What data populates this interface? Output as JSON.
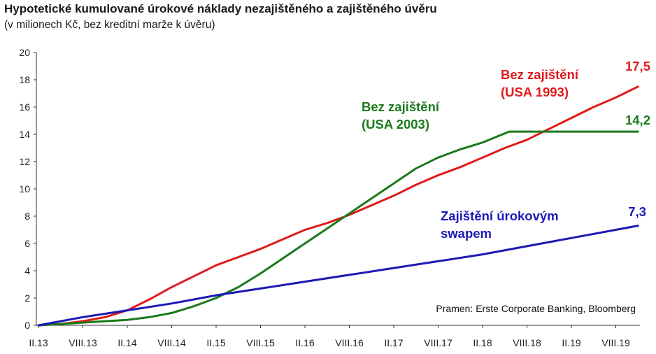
{
  "header": {
    "title": "Hypotetické kumulované úrokové náklady nezajištěného a zajištěného úvěru",
    "subtitle": "(v milionech Kč, bez kreditní marže k úvěru)"
  },
  "source_note": "Pramen: Erste Corporate Banking, Bloomberg",
  "colors": {
    "red": "#e01b1b",
    "green": "#1b7a1b",
    "blue": "#1c1ab4",
    "axis": "#333333"
  },
  "chart_data": {
    "type": "line",
    "title": "Hypotetické kumulované úrokové náklady nezajištěného a zajištěného úvěru",
    "subtitle": "(v milionech Kč, bez kreditní marže k úvěru)",
    "xlim": [
      0,
      13.6
    ],
    "ylim": [
      0,
      20
    ],
    "y_ticks": [
      0,
      2,
      4,
      6,
      8,
      10,
      12,
      14,
      16,
      18,
      20
    ],
    "x_ticks": [
      {
        "value": 0,
        "label": "II.13"
      },
      {
        "value": 1,
        "label": "VIII.13"
      },
      {
        "value": 2,
        "label": "II.14"
      },
      {
        "value": 3,
        "label": "VIII.14"
      },
      {
        "value": 4,
        "label": "II.15"
      },
      {
        "value": 5,
        "label": "VIII.15"
      },
      {
        "value": 6,
        "label": "II.16"
      },
      {
        "value": 7,
        "label": "VIII.16"
      },
      {
        "value": 8,
        "label": "II.17"
      },
      {
        "value": 9,
        "label": "VIII.17"
      },
      {
        "value": 10,
        "label": "II.18"
      },
      {
        "value": 11,
        "label": "VIII.18"
      },
      {
        "value": 12,
        "label": "II.19"
      },
      {
        "value": 13,
        "label": "VIII.19"
      }
    ],
    "grid": false,
    "series": [
      {
        "key": "red",
        "label_lines": [
          "Bez zajištění",
          "(USA 1993)"
        ],
        "end_label": "17,5",
        "x": [
          0,
          0.5,
          1,
          1.5,
          2,
          2.5,
          3,
          3.5,
          4,
          4.5,
          5,
          5.5,
          6,
          6.5,
          7,
          7.5,
          8,
          8.5,
          9,
          9.5,
          10,
          10.5,
          11,
          11.5,
          12,
          12.5,
          13,
          13.5
        ],
        "values": [
          0,
          0.1,
          0.3,
          0.6,
          1.1,
          1.9,
          2.8,
          3.6,
          4.4,
          5.0,
          5.6,
          6.3,
          7.0,
          7.5,
          8.1,
          8.8,
          9.5,
          10.3,
          11.0,
          11.6,
          12.3,
          13.0,
          13.6,
          14.4,
          15.2,
          16.0,
          16.7,
          17.5
        ]
      },
      {
        "key": "green",
        "label_lines": [
          "Bez zajištění",
          "(USA 2003)"
        ],
        "end_label": "14,2",
        "x": [
          0,
          0.5,
          1,
          1.5,
          2,
          2.5,
          3,
          3.5,
          4,
          4.5,
          5,
          5.5,
          6,
          6.5,
          7,
          7.5,
          8,
          8.5,
          9,
          9.5,
          10,
          10.3,
          10.6,
          11,
          11.5,
          12,
          12.5,
          13,
          13.5
        ],
        "values": [
          0,
          0.1,
          0.2,
          0.3,
          0.4,
          0.6,
          0.9,
          1.4,
          2.0,
          2.8,
          3.8,
          4.9,
          6.0,
          7.1,
          8.2,
          9.3,
          10.4,
          11.5,
          12.3,
          12.9,
          13.4,
          13.8,
          14.2,
          14.2,
          14.2,
          14.2,
          14.2,
          14.2,
          14.2
        ]
      },
      {
        "key": "blue",
        "label_lines": [
          "Zajištění úrokovým",
          "swapem"
        ],
        "end_label": "7,3",
        "x": [
          0,
          1,
          2,
          3,
          4,
          5,
          6,
          7,
          8,
          9,
          10,
          11,
          12,
          13,
          13.5
        ],
        "values": [
          0,
          0.6,
          1.1,
          1.6,
          2.2,
          2.7,
          3.2,
          3.7,
          4.2,
          4.7,
          5.2,
          5.8,
          6.4,
          7.0,
          7.3
        ]
      }
    ]
  }
}
